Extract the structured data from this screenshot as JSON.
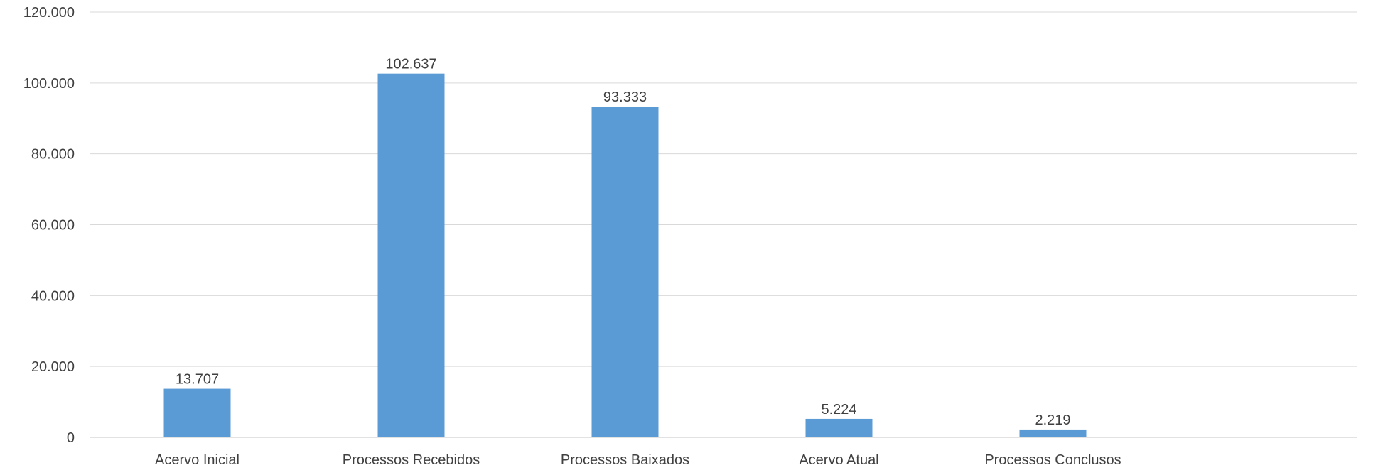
{
  "chart_data": {
    "type": "bar",
    "categories": [
      "Acervo Inicial",
      "Processos Recebidos",
      "Processos Baixados",
      "Acervo Atual",
      "Processos Conclusos"
    ],
    "values": [
      13707,
      102637,
      93333,
      5224,
      2219
    ],
    "value_labels": [
      "13.707",
      "102.637",
      "93.333",
      "5.224",
      "2.219"
    ],
    "y_ticks": [
      0,
      20000,
      40000,
      60000,
      80000,
      100000,
      120000
    ],
    "y_tick_labels": [
      "0",
      "20.000",
      "40.000",
      "60.000",
      "80.000",
      "100.000",
      "120.000"
    ],
    "ylim": [
      0,
      120000
    ],
    "grid": true,
    "legend": "none",
    "bar_color": "#5b9bd5",
    "gridline_color": "#d9d9d9",
    "title": "",
    "xlabel": "",
    "ylabel": ""
  }
}
